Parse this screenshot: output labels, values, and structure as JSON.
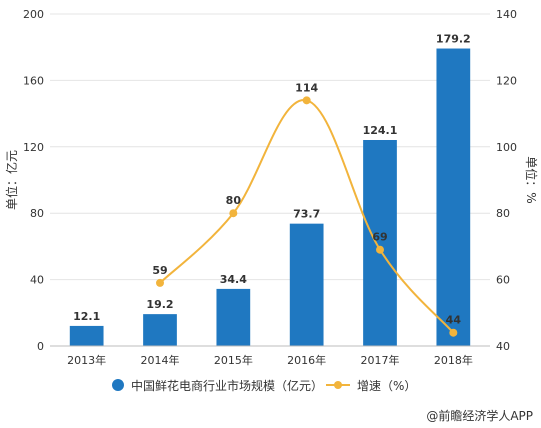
{
  "chart_data": {
    "type": "bar",
    "categories": [
      "2013年",
      "2014年",
      "2015年",
      "2016年",
      "2017年",
      "2018年"
    ],
    "series": [
      {
        "name": "中国鲜花电商行业市场规模（亿元）",
        "type": "bar",
        "axis": "left",
        "values": [
          12.1,
          19.2,
          34.4,
          73.7,
          124.1,
          179.2
        ],
        "color": "#1f78c1"
      },
      {
        "name": "增速（%）",
        "type": "line",
        "axis": "right",
        "values": [
          null,
          59,
          80,
          114,
          69,
          44
        ],
        "color": "#f2b43c"
      }
    ],
    "y_left": {
      "label": "单位：亿元",
      "ylim": [
        0,
        200
      ],
      "ticks": [
        0,
        40,
        80,
        120,
        160,
        200
      ]
    },
    "y_right": {
      "label": "单位：%",
      "ylim": [
        40,
        140
      ],
      "ticks": [
        40,
        60,
        80,
        100,
        120,
        140
      ]
    },
    "grid": true,
    "legend_position": "bottom"
  },
  "labels": {
    "bar_values": [
      "12.1",
      "19.2",
      "34.4",
      "73.7",
      "124.1",
      "179.2"
    ],
    "line_values": [
      "",
      "59",
      "80",
      "114",
      "69",
      "44"
    ]
  },
  "credit": "@前瞻经济学人APP"
}
